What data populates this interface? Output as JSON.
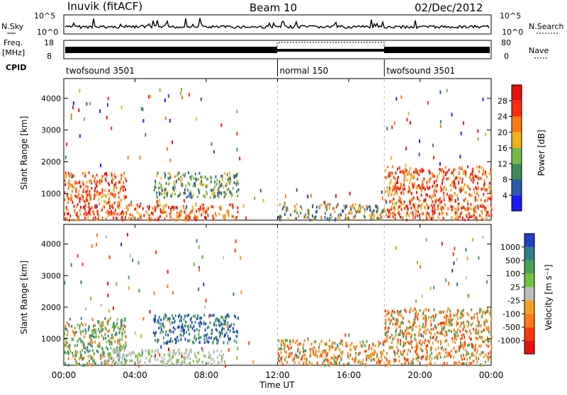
{
  "header": {
    "station": "Inuvik (fitACF)",
    "beam": "Beam 10",
    "date": "02/Dec/2012"
  },
  "status_panels": {
    "nsky_label": "N.Sky",
    "nsky_ticks": [
      "10^5",
      "10^0"
    ],
    "nsearch_label": "N.Search",
    "freq_label_1": "Freq.",
    "freq_label_2": "[MHz]",
    "freq_ticks": [
      "18",
      "8"
    ],
    "nave_ticks": [
      "80",
      "0"
    ],
    "nave_label": "Nave",
    "cpid_label": "CPID"
  },
  "cpid_segments": [
    {
      "label": "twofsound 3501",
      "start_hour": 0,
      "end_hour": 12
    },
    {
      "label": "normal 150",
      "start_hour": 12,
      "end_hour": 18
    },
    {
      "label": "twofsound 3501",
      "start_hour": 18,
      "end_hour": 24
    }
  ],
  "chart_data": [
    {
      "type": "heatmap",
      "panel": "power",
      "ylabel": "Slant Range [km]",
      "ylim": [
        180,
        4600
      ],
      "yticks": [
        "1000",
        "2000",
        "3000",
        "4000"
      ],
      "xlim": [
        0,
        24
      ],
      "colorbar_label": "Power [dB]",
      "colorbar_ticks": [
        "4",
        "8",
        "12",
        "16",
        "20",
        "24",
        "28"
      ],
      "colors": [
        "#1a1aff",
        "#2b5aa8",
        "#3f8c5a",
        "#78b848",
        "#f0b21a",
        "#ff7a14",
        "#ff2a12",
        "#e81010"
      ],
      "regions": [
        {
          "t0": 0,
          "t1": 3.5,
          "r0": 200,
          "r1": 1700,
          "level": "high"
        },
        {
          "t0": 3,
          "t1": 9.8,
          "r0": 200,
          "r1": 700,
          "level": "high"
        },
        {
          "t0": 5,
          "t1": 9.8,
          "r0": 900,
          "r1": 1700,
          "level": "mid"
        },
        {
          "t0": 12,
          "t1": 18,
          "r0": 200,
          "r1": 700,
          "level": "low"
        },
        {
          "t0": 18,
          "t1": 24,
          "r0": 200,
          "r1": 1900,
          "level": "high"
        }
      ]
    },
    {
      "type": "heatmap",
      "panel": "velocity",
      "ylabel": "Slant Range [km]",
      "ylim": [
        180,
        4600
      ],
      "yticks": [
        "1000",
        "2000",
        "3000",
        "4000"
      ],
      "xlim": [
        0,
        24
      ],
      "colorbar_label": "Velocity [m s⁻¹]",
      "colorbar_ticks": [
        "1000",
        "500",
        "100",
        "25",
        "-25",
        "-100",
        "-500",
        "-1000"
      ],
      "colors": [
        "#2040c0",
        "#2e7f86",
        "#4aa055",
        "#72c23e",
        "#bdbdbd",
        "#f0a020",
        "#ff7a14",
        "#ff3a0a",
        "#e81010"
      ],
      "regions": [
        {
          "t0": 0,
          "t1": 3.5,
          "r0": 200,
          "r1": 1700,
          "level": "positive"
        },
        {
          "t0": 5,
          "t1": 9.8,
          "r0": 900,
          "r1": 1800,
          "level": "high-positive"
        },
        {
          "t0": 2,
          "t1": 9,
          "r0": 200,
          "r1": 700,
          "level": "zero"
        },
        {
          "t0": 12,
          "t1": 18,
          "r0": 200,
          "r1": 1000,
          "level": "negative"
        },
        {
          "t0": 18,
          "t1": 24,
          "r0": 200,
          "r1": 2000,
          "level": "negative"
        }
      ]
    }
  ],
  "xaxis": {
    "label": "Time UT",
    "ticks": [
      "00:00",
      "04:00",
      "08:00",
      "12:00",
      "16:00",
      "20:00",
      "00:00"
    ]
  }
}
